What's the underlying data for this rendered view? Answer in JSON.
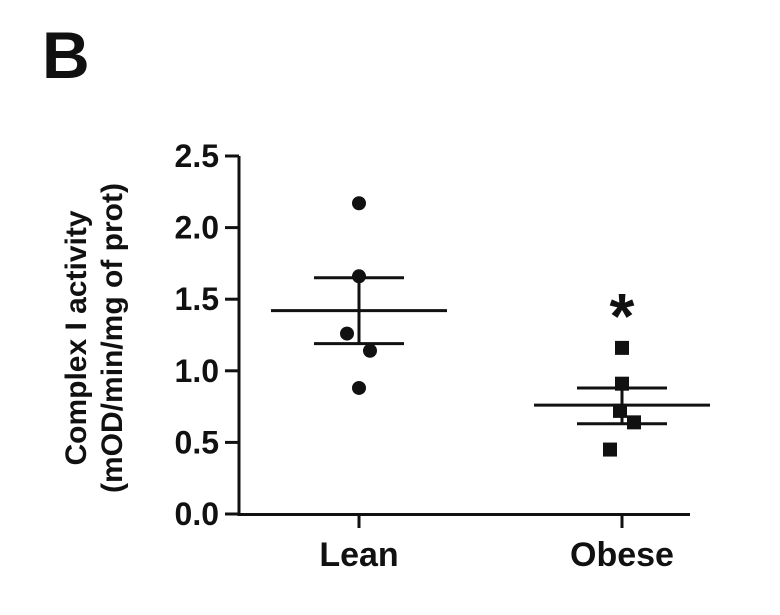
{
  "panel_label": "B",
  "chart_data": {
    "type": "scatter",
    "ylabel_line1": "Complex I activity",
    "ylabel_line2": "(mOD/min/mg of prot)",
    "xlabel": "",
    "ylim": [
      0.0,
      2.5
    ],
    "yticks": [
      {
        "value": 0.0,
        "label": "0.0"
      },
      {
        "value": 0.5,
        "label": "0.5"
      },
      {
        "value": 1.0,
        "label": "1.0"
      },
      {
        "value": 1.5,
        "label": "1.5"
      },
      {
        "value": 2.0,
        "label": "2.0"
      },
      {
        "value": 2.5,
        "label": "2.5"
      }
    ],
    "categories": [
      "Lean",
      "Obese"
    ],
    "groups": [
      {
        "category": "Lean",
        "marker": "circle",
        "points": [
          2.17,
          1.66,
          1.26,
          1.14,
          0.88
        ],
        "mean": 1.42,
        "sem_upper": 1.65,
        "sem_lower": 1.19
      },
      {
        "category": "Obese",
        "marker": "square",
        "points": [
          1.16,
          0.91,
          0.72,
          0.64,
          0.45
        ],
        "mean": 0.76,
        "sem_upper": 0.88,
        "sem_lower": 0.63,
        "annotation": "*"
      }
    ],
    "grid": false
  }
}
